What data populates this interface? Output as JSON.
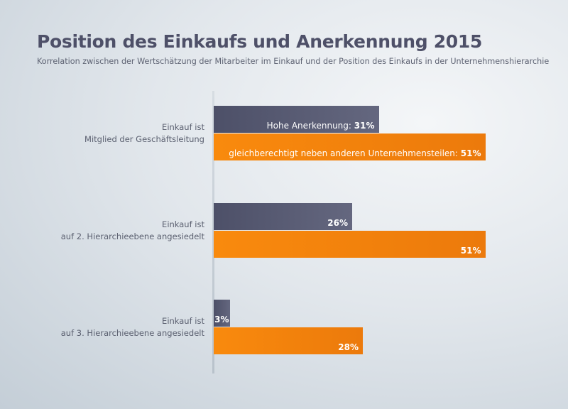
{
  "title": "Position des Einkaufs und Anerkennung 2015",
  "subtitle": "Korrelation zwischen der Wertschätzung der Mitarbeiter im Einkauf und der Position des Einkaufs in der Unternehmenshierarchie",
  "chart_data": {
    "type": "bar",
    "orientation": "horizontal",
    "title": "Position des Einkaufs und Anerkennung 2015",
    "subtitle": "Korrelation zwischen der Wertschätzung der Mitarbeiter im Einkauf und der Position des Einkaufs in der Unternehmenshierarchie",
    "categories": [
      [
        "Einkauf ist",
        "Mitglied der Geschäftsleitung"
      ],
      [
        "Einkauf ist",
        "auf 2. Hierarchieebene angesiedelt"
      ],
      [
        "Einkauf ist",
        "auf 3. Hierarchieebene angesiedelt"
      ]
    ],
    "series": [
      {
        "name": "Hohe Anerkennung",
        "color": "#55586f",
        "values": [
          31,
          26,
          3
        ],
        "labels": [
          "31%",
          "26%",
          "3%"
        ]
      },
      {
        "name": "gleichberechtigt neben anderen Unternehmensteilen",
        "color": "#f5820c",
        "values": [
          51,
          51,
          28
        ],
        "labels": [
          "51%",
          "51%",
          "28%"
        ]
      }
    ],
    "unit": "%",
    "grid": false
  }
}
